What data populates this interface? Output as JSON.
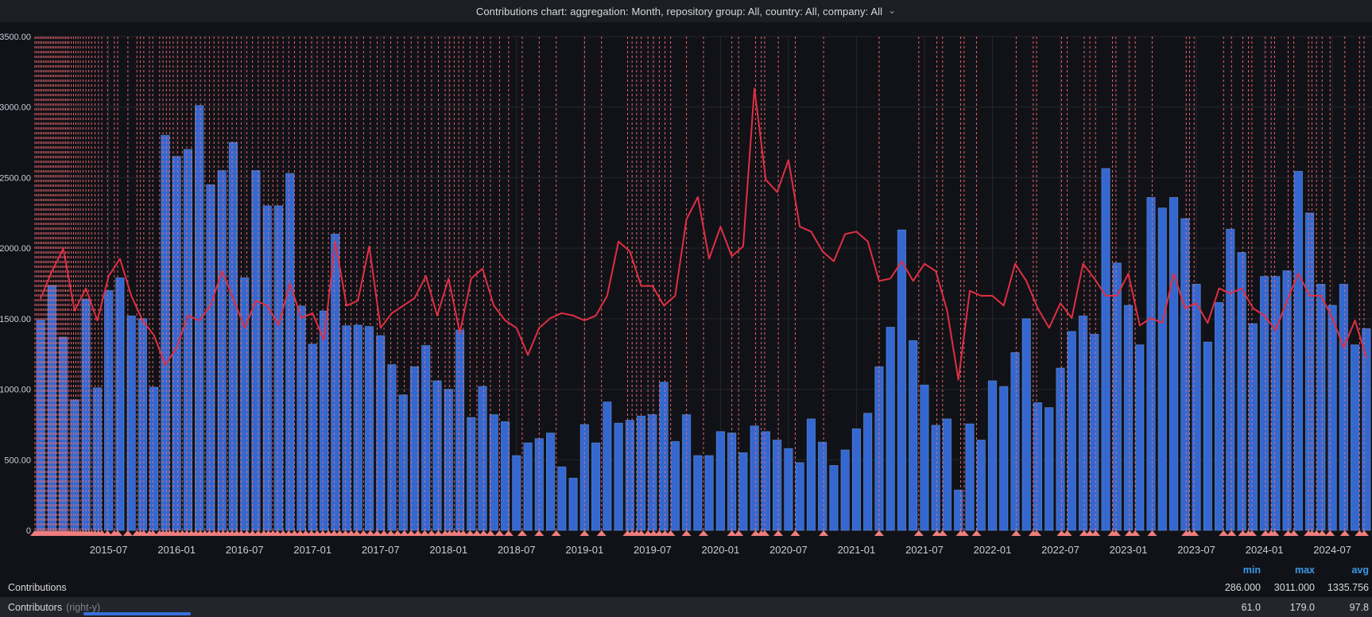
{
  "panel": {
    "title": "Contributions chart: aggregation: Month, repository group: All, country: All, company: All",
    "chevron": "⌄"
  },
  "chart_data": {
    "type": "bar+line",
    "x_start": "2015-01",
    "x_end": "2024-10",
    "months_count": 118,
    "x_tick_labels": [
      "2015-07",
      "2016-01",
      "2016-07",
      "2017-01",
      "2017-07",
      "2018-01",
      "2018-07",
      "2019-01",
      "2019-07",
      "2020-01",
      "2020-07",
      "2021-01",
      "2021-07",
      "2022-01",
      "2022-07",
      "2023-01",
      "2023-07",
      "2024-01",
      "2024-07"
    ],
    "left_axis": {
      "label": "Contributions",
      "min": 0,
      "max": 3500,
      "step": 500,
      "tick_labels": [
        "3500.00",
        "3000.00",
        "2500.00",
        "2000.00",
        "1500.00",
        "1000.00",
        "500.00",
        "0"
      ]
    },
    "right_axis": {
      "label": "Contributors",
      "min": 0,
      "max": 200,
      "ticks_visible": false
    },
    "grid": true,
    "legend_position": "bottom-table",
    "colors": {
      "bar_fill": "#3468d0",
      "bar_stroke": "#76a6f2",
      "line": "#e02f44",
      "annotation": "#ee6a72",
      "marker": "#ef7e7e",
      "grid": "#24272d",
      "axis_text": "#ccccdc"
    },
    "series": [
      {
        "name": "Contributions",
        "type": "bar",
        "axis": "left",
        "values": [
          1490,
          1735,
          1370,
          925,
          1640,
          1010,
          1700,
          1790,
          1520,
          1500,
          1015,
          2800,
          2650,
          2700,
          3011,
          2450,
          2550,
          2750,
          1790,
          2550,
          2300,
          2300,
          2530,
          1590,
          1320,
          1555,
          2100,
          1450,
          1455,
          1445,
          1380,
          1175,
          960,
          1160,
          1310,
          1060,
          1000,
          1420,
          800,
          1020,
          820,
          770,
          530,
          620,
          650,
          690,
          450,
          370,
          750,
          620,
          910,
          760,
          780,
          810,
          820,
          1050,
          630,
          820,
          530,
          530,
          700,
          690,
          550,
          740,
          700,
          640,
          580,
          480,
          790,
          625,
          460,
          570,
          720,
          830,
          1160,
          1440,
          2130,
          1345,
          1030,
          745,
          790,
          286,
          755,
          640,
          1060,
          1020,
          1260,
          1500,
          905,
          870,
          1150,
          1410,
          1520,
          1390,
          2565,
          1895,
          1595,
          1315,
          2360,
          2285,
          2360,
          2210,
          1745,
          1335,
          1615,
          2135,
          1970,
          1465,
          1800,
          1800,
          1840,
          2545,
          2250,
          1745,
          1595,
          1745,
          1315,
          1430
        ]
      },
      {
        "name": "Contributors",
        "type": "line",
        "axis": "right",
        "values": [
          94,
          105,
          114,
          89,
          98,
          85,
          103,
          110,
          95,
          85,
          79,
          67,
          74,
          87,
          85,
          91,
          105,
          94,
          82,
          93,
          91,
          83,
          100,
          86,
          88,
          77,
          117,
          91,
          93,
          115,
          82,
          88,
          91,
          94,
          103,
          87,
          102,
          80,
          102,
          106,
          91,
          85,
          82,
          71,
          82,
          86,
          88,
          87,
          85,
          87,
          95,
          117,
          113,
          99,
          99,
          91,
          95,
          126,
          135,
          110,
          123,
          111,
          115,
          179,
          142,
          137,
          150,
          123,
          121,
          113,
          109,
          120,
          121,
          117,
          101,
          102,
          109,
          101,
          108,
          105,
          89,
          61,
          97,
          95,
          95,
          91,
          108,
          101,
          90,
          82,
          92,
          86,
          108,
          102,
          95,
          95,
          104,
          83,
          86,
          84,
          104,
          90,
          92,
          84,
          98,
          96,
          98,
          90,
          87,
          81,
          93,
          104,
          95,
          95,
          86,
          74,
          85,
          70
        ]
      }
    ],
    "annotations": {
      "style": "dashed-vertical-with-triangle-marker",
      "month_positions": [
        0.0,
        0.15,
        0.3,
        0.45,
        0.6,
        0.75,
        0.9,
        1.05,
        1.2,
        1.35,
        1.5,
        1.65,
        1.8,
        1.95,
        2.1,
        2.25,
        2.4,
        2.55,
        2.7,
        2.85,
        3.0,
        3.2,
        3.4,
        3.6,
        3.8,
        4.0,
        4.25,
        4.5,
        4.75,
        5.0,
        5.3,
        5.6,
        5.9,
        6.4,
        7.0,
        7.3,
        8.2,
        9.0,
        9.3,
        9.6,
        10.1,
        10.4,
        11.0,
        11.3,
        11.6,
        11.9,
        12.2,
        12.6,
        13.0,
        13.4,
        13.8,
        14.2,
        14.6,
        15.0,
        15.4,
        15.8,
        16.2,
        16.6,
        17.0,
        17.4,
        17.8,
        18.2,
        18.7,
        19.2,
        19.7,
        20.2,
        20.6,
        21.0,
        21.4,
        21.9,
        22.4,
        22.9,
        23.4,
        23.9,
        24.4,
        24.9,
        25.4,
        25.9,
        26.4,
        26.9,
        27.4,
        27.9,
        28.4,
        29.0,
        29.6,
        30.2,
        30.8,
        31.4,
        32.0,
        32.6,
        33.2,
        33.8,
        34.4,
        35.0,
        35.6,
        36.2,
        36.6,
        37.0,
        37.4,
        37.8,
        38.4,
        39.0,
        39.6,
        40.2,
        41.0,
        41.8,
        43.0,
        44.5,
        46.0,
        48.5,
        50.0,
        52.3,
        52.7,
        53.1,
        53.5,
        54.1,
        54.6,
        55.1,
        55.6,
        56.1,
        57.5,
        59.0,
        61.5,
        62.1,
        63.6,
        64.1,
        64.4,
        65.6,
        67.1,
        69.6,
        74.5,
        78.0,
        79.6,
        80.1,
        81.7,
        82.0,
        83.1,
        86.6,
        88.1,
        88.4,
        90.6,
        91.1,
        92.6,
        93.1,
        93.6,
        95.1,
        95.4,
        96.6,
        97.1,
        98.6,
        101.6,
        101.9,
        102.3,
        104.9,
        105.6,
        106.6,
        107.1,
        107.4,
        108.6,
        109.1,
        109.4,
        110.6,
        111.1,
        112.4,
        112.7,
        113.1,
        113.6,
        114.3,
        115.6,
        116.9,
        117.3
      ]
    }
  },
  "legend_table": {
    "headers": {
      "min": "min",
      "max": "max",
      "avg": "avg"
    },
    "rows": [
      {
        "label": "Contributions",
        "axis_note": "",
        "min": "286.000",
        "max": "3011.000",
        "avg": "1335.756"
      },
      {
        "label": "Contributors",
        "axis_note": "(right-y)",
        "min": "61.0",
        "max": "179.0",
        "avg": "97.8"
      }
    ]
  }
}
